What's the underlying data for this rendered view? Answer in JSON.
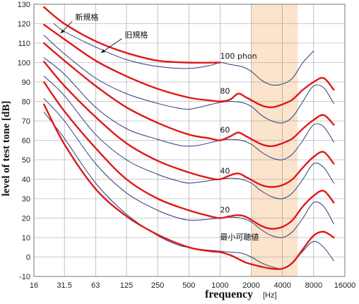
{
  "chart_data": {
    "type": "line",
    "title": "",
    "xlabel": "frequency",
    "xlabel_unit": "[Hz]",
    "ylabel": "level of test tone  [dB]",
    "x_scale": "log2",
    "xlim": [
      16,
      16000
    ],
    "ylim": [
      -10,
      130
    ],
    "grid": true,
    "x_ticks": [
      {
        "v": 16,
        "label": "16"
      },
      {
        "v": 31.5,
        "label": "31.5"
      },
      {
        "v": 63,
        "label": "63"
      },
      {
        "v": 125,
        "label": "125"
      },
      {
        "v": 250,
        "label": "250"
      },
      {
        "v": 500,
        "label": "500"
      },
      {
        "v": 1000,
        "label": "1000"
      },
      {
        "v": 2000,
        "label": "2000"
      },
      {
        "v": 4000,
        "label": "4000"
      },
      {
        "v": 8000,
        "label": "8000"
      },
      {
        "v": 16000,
        "label": "16000"
      }
    ],
    "y_ticks": [
      -10,
      0,
      10,
      20,
      30,
      40,
      50,
      60,
      70,
      80,
      90,
      100,
      110,
      120,
      130
    ],
    "highlight_band": {
      "from": 2000,
      "to": 5600,
      "color": "#fbe3cc"
    },
    "colors": {
      "new": "#e01818",
      "old": "#2b3f7a",
      "grid": "#999999",
      "band": "#fbe3cc"
    },
    "annotations": [
      {
        "text": "新規格",
        "color": "#e01818",
        "at": [
          40,
          122
        ],
        "arrow_to": [
          29,
          115
        ]
      },
      {
        "text": "旧規格",
        "color": "#2b3f7a",
        "at": [
          120,
          113
        ],
        "arrow_to": [
          71,
          105
        ]
      },
      {
        "text": "100 phon",
        "color": "#111111",
        "at": [
          1000,
          102
        ]
      },
      {
        "text": "80",
        "color": "#111111",
        "at": [
          1000,
          84
        ]
      },
      {
        "text": "60",
        "color": "#111111",
        "at": [
          1000,
          64
        ]
      },
      {
        "text": "40",
        "color": "#111111",
        "at": [
          1000,
          43
        ]
      },
      {
        "text": "20",
        "color": "#111111",
        "at": [
          1000,
          23
        ]
      },
      {
        "text": "最小可聴値",
        "color": "#111111",
        "at": [
          1000,
          9
        ]
      }
    ],
    "series": [
      {
        "group": "new",
        "x": [
          20,
          31.5,
          63,
          125,
          250,
          500,
          1000
        ],
        "values": [
          128.5,
          120,
          111,
          105,
          101,
          100,
          100
        ]
      },
      {
        "group": "new",
        "x": [
          20,
          31.5,
          63,
          125,
          250,
          500,
          800,
          1000,
          1250,
          1500,
          1800,
          2500,
          3150,
          4000,
          5000,
          6300,
          8000,
          10000,
          12500
        ],
        "values": [
          119.5,
          112,
          101,
          93,
          86.5,
          82,
          80.5,
          80,
          81,
          84,
          82,
          78,
          77,
          78.5,
          81,
          86,
          90,
          92,
          86
        ]
      },
      {
        "group": "new",
        "x": [
          20,
          31.5,
          63,
          125,
          250,
          500,
          800,
          1000,
          1250,
          1500,
          1800,
          2500,
          3150,
          4000,
          5000,
          6300,
          8000,
          10000,
          12500
        ],
        "values": [
          110,
          101,
          88,
          77,
          69,
          63,
          61,
          60,
          62,
          64,
          62,
          58,
          57,
          58.5,
          61,
          66,
          70.5,
          73,
          68
        ]
      },
      {
        "group": "new",
        "x": [
          20,
          31.5,
          63,
          125,
          250,
          500,
          800,
          1000,
          1250,
          1500,
          1800,
          2500,
          3150,
          4000,
          5000,
          6300,
          8000,
          10000,
          12500
        ],
        "values": [
          100.5,
          88,
          72,
          58.5,
          49.5,
          43.5,
          40.5,
          40,
          42,
          43,
          41,
          37,
          36,
          37,
          40,
          46,
          51.5,
          54,
          48
        ]
      },
      {
        "group": "new",
        "x": [
          20,
          31.5,
          63,
          125,
          250,
          500,
          800,
          1000,
          1250,
          1500,
          1800,
          2500,
          3150,
          4000,
          5000,
          6300,
          8000,
          10000,
          12500
        ],
        "values": [
          90,
          75,
          56,
          40,
          30,
          24,
          21,
          20,
          21,
          21.5,
          20.5,
          16,
          14.5,
          15.5,
          19,
          26,
          31.5,
          34,
          28
        ]
      },
      {
        "group": "new",
        "x": [
          20,
          31.5,
          63,
          125,
          250,
          500,
          800,
          1000,
          1250,
          1500,
          1800,
          2500,
          3150,
          4000,
          5000,
          6300,
          8000,
          10000,
          12500
        ],
        "values": [
          78.5,
          58,
          35,
          21,
          11.5,
          5,
          3,
          2.5,
          1,
          -1,
          -3,
          -5,
          -6,
          -6,
          -3,
          4,
          11,
          13,
          10
        ]
      },
      {
        "group": "old",
        "x": [
          25,
          31.5,
          63,
          125,
          250,
          500,
          800,
          1000,
          1250,
          1600,
          2000,
          2500,
          3150,
          4000,
          5000,
          6300,
          8000
        ],
        "values": [
          120,
          116,
          108,
          101.5,
          98,
          97,
          98.5,
          100,
          99,
          98,
          95.5,
          91,
          88.5,
          89,
          92,
          100,
          106
        ]
      },
      {
        "group": "old",
        "x": [
          20,
          31.5,
          63,
          125,
          250,
          400,
          500,
          630,
          1000,
          1250,
          1600,
          2000,
          2500,
          3150,
          4000,
          5000,
          6300,
          8000,
          10000,
          12500
        ],
        "values": [
          114,
          104.5,
          92,
          84,
          79,
          76.5,
          76,
          77,
          79.5,
          80,
          79.5,
          77.5,
          73,
          70,
          69,
          72,
          80,
          88,
          87,
          79
        ]
      },
      {
        "group": "old",
        "x": [
          20,
          31.5,
          63,
          125,
          250,
          400,
          500,
          630,
          1000,
          1250,
          1600,
          2000,
          2500,
          3150,
          4000,
          5000,
          6300,
          8000,
          10000,
          12500
        ],
        "values": [
          102.5,
          94,
          77,
          66,
          60.5,
          57.5,
          57,
          57.5,
          60,
          60.5,
          60,
          58,
          54,
          51,
          50,
          53,
          60,
          68,
          67,
          59
        ]
      },
      {
        "group": "old",
        "x": [
          20,
          31.5,
          63,
          125,
          250,
          400,
          500,
          630,
          1000,
          1250,
          1600,
          2000,
          2500,
          3150,
          4000,
          5000,
          6300,
          8000,
          10000,
          12500
        ],
        "values": [
          93,
          83,
          63,
          50,
          42.5,
          39,
          38,
          38.5,
          40,
          40.5,
          40,
          38,
          34,
          31,
          30,
          33,
          40,
          48,
          46,
          38
        ]
      },
      {
        "group": "old",
        "x": [
          20,
          31.5,
          63,
          125,
          250,
          400,
          500,
          630,
          1000,
          1250,
          1600,
          2000,
          2500,
          3150,
          4000,
          5000,
          6300,
          8000,
          10000,
          12500
        ],
        "values": [
          81.5,
          70,
          48,
          33,
          24,
          20,
          19,
          19,
          20,
          20.5,
          20,
          18,
          14,
          11,
          10,
          13,
          20,
          28,
          26,
          17
        ]
      },
      {
        "group": "old",
        "x": [
          20,
          31.5,
          63,
          125,
          250,
          400,
          500,
          630,
          1000,
          1250,
          1600,
          2000,
          2500,
          3150,
          4000,
          5000,
          6300,
          8000,
          10000,
          12500
        ],
        "values": [
          74.5,
          61,
          38,
          22,
          11,
          6,
          5,
          4,
          3,
          2.5,
          2,
          0,
          -3,
          -5,
          -6,
          -3,
          3,
          8,
          5,
          -2
        ]
      }
    ]
  }
}
